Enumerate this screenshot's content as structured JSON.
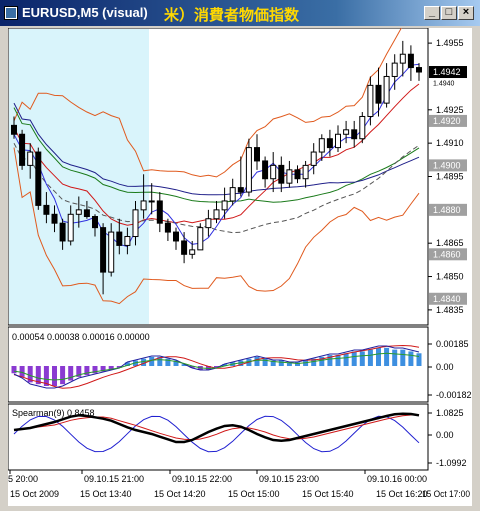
{
  "window": {
    "title": "EURUSD,M5 (visual)",
    "title_annotation": "米）消費者物価指数",
    "buttons": {
      "minimize": "_",
      "maximize": "□",
      "close": "×"
    }
  },
  "colors": {
    "highlight_bg": "#d9f4fb",
    "bull_candle": "#ffffff",
    "bear_candle": "#000000",
    "bollinger": "#e05a1e",
    "price_label_box": "#a0a0a0",
    "current_price_box": "#000000",
    "histogram_pos": "#3d8fe0",
    "histogram_neg": "#8a3ad1",
    "spearman_line": "#000000"
  },
  "main_chart": {
    "y_ticks": [
      "1.4955",
      "1.4925",
      "1.4910",
      "1.4895",
      "1.4865",
      "1.4850",
      "1.4835"
    ],
    "price_boxes": [
      "1.4942",
      "1.4920",
      "1.4900",
      "1.4880",
      "1.4860",
      "1.4840"
    ],
    "current_price": "1.4942",
    "clipped_tick": "1.4940"
  },
  "macd_panel": {
    "values_label": "0.00054 0.00038 0.00016 0.00000",
    "y_ticks": [
      "0.00185",
      "0.00",
      "-0.00182"
    ]
  },
  "spearman_panel": {
    "label": "Spearman(9) 0.8458",
    "y_ticks": [
      "1.0825",
      "0.00",
      "-1.0992"
    ]
  },
  "x_axis": {
    "upper_labels": [
      "5 20:00",
      "09.10.15 21:00",
      "09.10.15 22:00",
      "09.10.15 23:00",
      "09.10.16 00:00"
    ],
    "lower_labels": [
      "15 Oct 2009",
      "15 Oct 13:40",
      "15 Oct 14:20",
      "15 Oct 15:00",
      "15 Oct 15:40",
      "15 Oct 16:20",
      "15 Oct 17:00"
    ]
  },
  "chart_data": {
    "type": "candlestick",
    "symbol": "EURUSD",
    "timeframe": "M5",
    "ylim": [
      1.483,
      1.496
    ],
    "candles": [
      {
        "o": 1.4918,
        "h": 1.4922,
        "l": 1.4912,
        "c": 1.4914
      },
      {
        "o": 1.4914,
        "h": 1.4916,
        "l": 1.4898,
        "c": 1.49
      },
      {
        "o": 1.49,
        "h": 1.491,
        "l": 1.4894,
        "c": 1.4906
      },
      {
        "o": 1.4906,
        "h": 1.4908,
        "l": 1.488,
        "c": 1.4882
      },
      {
        "o": 1.4882,
        "h": 1.4888,
        "l": 1.4874,
        "c": 1.4878
      },
      {
        "o": 1.4878,
        "h": 1.4882,
        "l": 1.487,
        "c": 1.4874
      },
      {
        "o": 1.4874,
        "h": 1.4876,
        "l": 1.4862,
        "c": 1.4866
      },
      {
        "o": 1.4866,
        "h": 1.4882,
        "l": 1.4864,
        "c": 1.4878
      },
      {
        "o": 1.4878,
        "h": 1.4886,
        "l": 1.4872,
        "c": 1.488
      },
      {
        "o": 1.488,
        "h": 1.4884,
        "l": 1.4876,
        "c": 1.4877
      },
      {
        "o": 1.4877,
        "h": 1.4878,
        "l": 1.4868,
        "c": 1.4872
      },
      {
        "o": 1.4872,
        "h": 1.4874,
        "l": 1.4842,
        "c": 1.4852
      },
      {
        "o": 1.4852,
        "h": 1.4874,
        "l": 1.485,
        "c": 1.487
      },
      {
        "o": 1.487,
        "h": 1.4876,
        "l": 1.486,
        "c": 1.4864
      },
      {
        "o": 1.4864,
        "h": 1.4872,
        "l": 1.486,
        "c": 1.4868
      },
      {
        "o": 1.4868,
        "h": 1.4884,
        "l": 1.4864,
        "c": 1.488
      },
      {
        "o": 1.488,
        "h": 1.4896,
        "l": 1.4876,
        "c": 1.4884
      },
      {
        "o": 1.4884,
        "h": 1.4892,
        "l": 1.4878,
        "c": 1.4884
      },
      {
        "o": 1.4884,
        "h": 1.4888,
        "l": 1.487,
        "c": 1.4874
      },
      {
        "o": 1.4874,
        "h": 1.4876,
        "l": 1.4866,
        "c": 1.487
      },
      {
        "o": 1.487,
        "h": 1.4872,
        "l": 1.4862,
        "c": 1.4866
      },
      {
        "o": 1.4866,
        "h": 1.487,
        "l": 1.4856,
        "c": 1.486
      },
      {
        "o": 1.486,
        "h": 1.4866,
        "l": 1.4858,
        "c": 1.4862
      },
      {
        "o": 1.4862,
        "h": 1.4874,
        "l": 1.4862,
        "c": 1.4872
      },
      {
        "o": 1.4872,
        "h": 1.488,
        "l": 1.4868,
        "c": 1.4876
      },
      {
        "o": 1.4876,
        "h": 1.4884,
        "l": 1.4874,
        "c": 1.488
      },
      {
        "o": 1.488,
        "h": 1.489,
        "l": 1.4876,
        "c": 1.4884
      },
      {
        "o": 1.4884,
        "h": 1.4894,
        "l": 1.4882,
        "c": 1.489
      },
      {
        "o": 1.489,
        "h": 1.4904,
        "l": 1.4886,
        "c": 1.4888
      },
      {
        "o": 1.4888,
        "h": 1.4912,
        "l": 1.4886,
        "c": 1.4908
      },
      {
        "o": 1.4908,
        "h": 1.4914,
        "l": 1.4898,
        "c": 1.4902
      },
      {
        "o": 1.4902,
        "h": 1.4904,
        "l": 1.489,
        "c": 1.4894
      },
      {
        "o": 1.4894,
        "h": 1.4906,
        "l": 1.4888,
        "c": 1.49
      },
      {
        "o": 1.49,
        "h": 1.4904,
        "l": 1.4888,
        "c": 1.4892
      },
      {
        "o": 1.4892,
        "h": 1.4902,
        "l": 1.489,
        "c": 1.4898
      },
      {
        "o": 1.4898,
        "h": 1.49,
        "l": 1.4892,
        "c": 1.4894
      },
      {
        "o": 1.4894,
        "h": 1.4902,
        "l": 1.489,
        "c": 1.49
      },
      {
        "o": 1.49,
        "h": 1.491,
        "l": 1.4896,
        "c": 1.4906
      },
      {
        "o": 1.4906,
        "h": 1.4914,
        "l": 1.4902,
        "c": 1.4912
      },
      {
        "o": 1.4912,
        "h": 1.4916,
        "l": 1.4904,
        "c": 1.4908
      },
      {
        "o": 1.4908,
        "h": 1.4918,
        "l": 1.4906,
        "c": 1.4914
      },
      {
        "o": 1.4914,
        "h": 1.492,
        "l": 1.491,
        "c": 1.4916
      },
      {
        "o": 1.4916,
        "h": 1.492,
        "l": 1.4908,
        "c": 1.4912
      },
      {
        "o": 1.4912,
        "h": 1.4924,
        "l": 1.491,
        "c": 1.4922
      },
      {
        "o": 1.4922,
        "h": 1.494,
        "l": 1.4918,
        "c": 1.4936
      },
      {
        "o": 1.4936,
        "h": 1.4944,
        "l": 1.4922,
        "c": 1.4928
      },
      {
        "o": 1.4928,
        "h": 1.4946,
        "l": 1.4926,
        "c": 1.494
      },
      {
        "o": 1.494,
        "h": 1.495,
        "l": 1.4934,
        "c": 1.4946
      },
      {
        "o": 1.4946,
        "h": 1.4956,
        "l": 1.494,
        "c": 1.495
      },
      {
        "o": 1.495,
        "h": 1.4954,
        "l": 1.4938,
        "c": 1.4944
      },
      {
        "o": 1.4944,
        "h": 1.4946,
        "l": 1.4938,
        "c": 1.4942
      }
    ],
    "macd_histogram": [
      -0.0004,
      -0.0006,
      -0.0009,
      -0.001,
      -0.0011,
      -0.0011,
      -0.001,
      -0.0008,
      -0.0006,
      -0.0005,
      -0.0004,
      -0.0003,
      -0.0002,
      -0.0001,
      0.0002,
      0.0003,
      0.0004,
      0.0005,
      0.0005,
      0.0004,
      0.0003,
      0.0001,
      -0.0001,
      -0.0002,
      -0.0002,
      -0.0001,
      0.0001,
      0.0002,
      0.0003,
      0.0004,
      0.0005,
      0.0004,
      0.0003,
      0.0003,
      0.0002,
      0.0002,
      0.0003,
      0.0004,
      0.0005,
      0.0006,
      0.0006,
      0.0007,
      0.0008,
      0.0008,
      0.0009,
      0.001,
      0.001,
      0.0009,
      0.0009,
      0.0008,
      0.0007
    ],
    "spearman": [
      0.2,
      0.3,
      0.4,
      0.5,
      0.6,
      0.7,
      0.9,
      1.0,
      0.9,
      0.8,
      0.8,
      0.7,
      0.5,
      0.3,
      0.2,
      0.1,
      0.0,
      -0.1,
      -0.3,
      -0.4,
      -0.5,
      -0.3,
      -0.1,
      0.1,
      0.3,
      0.4,
      0.5,
      0.4,
      0.2,
      0.0,
      -0.2,
      -0.3,
      -0.4,
      -0.3,
      -0.2,
      -0.1,
      0.0,
      0.1,
      0.2,
      0.3,
      0.4,
      0.5,
      0.6,
      0.7,
      0.8,
      0.9,
      1.0,
      1.05,
      1.0,
      0.95,
      0.85
    ]
  }
}
